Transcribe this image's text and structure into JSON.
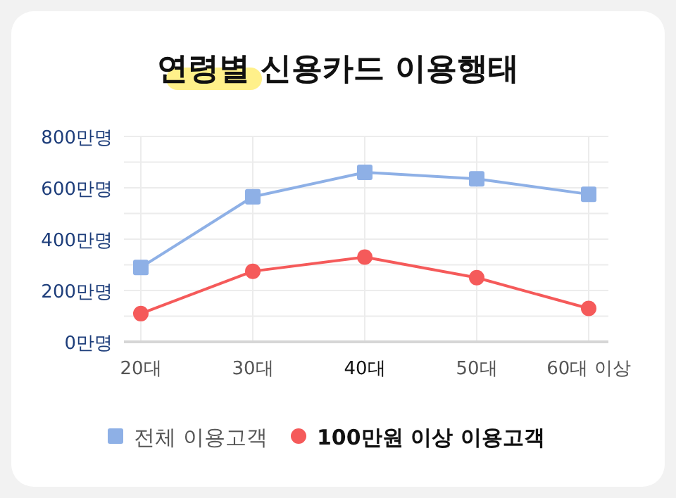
{
  "chart_data": {
    "type": "line",
    "title": "연령별 신용카드 이용행태",
    "categories": [
      "20대",
      "30대",
      "40대",
      "50대",
      "60대 이상"
    ],
    "series": [
      {
        "name": "전체 이용고객",
        "color": "#8eb0e6",
        "marker": "square",
        "values": [
          290,
          565,
          660,
          635,
          575
        ]
      },
      {
        "name": "100만원 이상 이용고객",
        "color": "#f55a5a",
        "marker": "circle",
        "values": [
          110,
          275,
          330,
          250,
          130
        ]
      }
    ],
    "ylim": [
      0,
      800
    ],
    "yticks": [
      {
        "value": 0,
        "label": "0만명"
      },
      {
        "value": 100,
        "label": null
      },
      {
        "value": 200,
        "label": "200만명"
      },
      {
        "value": 300,
        "label": null
      },
      {
        "value": 400,
        "label": "400만명"
      },
      {
        "value": 500,
        "label": null
      },
      {
        "value": 600,
        "label": "600만명"
      },
      {
        "value": 700,
        "label": null
      },
      {
        "value": 800,
        "label": "800만명"
      }
    ],
    "grid": true,
    "legend": "bottom",
    "line_style": "solid"
  }
}
